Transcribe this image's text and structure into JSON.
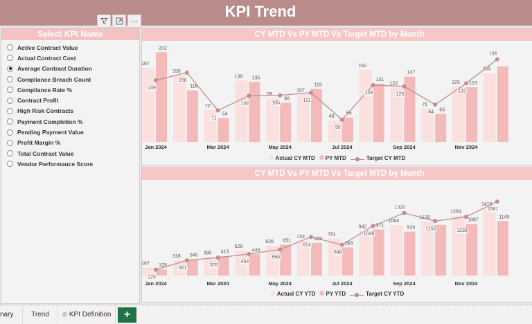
{
  "header": {
    "title": "KPI Trend"
  },
  "visual_icons": [
    "filter-icon",
    "focus-mode-icon",
    "more-options-icon"
  ],
  "slicer": {
    "title": "Select KPI Name",
    "selected_index": 2,
    "items": [
      "Active Contract Value",
      "Actual Contract Cost",
      "Average Contract Duration",
      "Compliance Breach Count",
      "Compliance Rate %",
      "Contract Profit",
      "High Risk Contracts",
      "Payment Completion %",
      "Pending Payment Value",
      "Profit Margin %",
      "Total Contract Value",
      "Vendor Performance Score"
    ]
  },
  "colors": {
    "header": "#b98b8b",
    "actual": "#fbe0e0",
    "py": "#f4b9b9",
    "target": "#bf8f8f",
    "tab_add": "#217346"
  },
  "chart_data": [
    {
      "type": "bar+line",
      "title": "CY MTD Vs PY MTD Vs Target MTD by Month",
      "categories": [
        "Jan 2024",
        "Feb 2024",
        "Mar 2024",
        "Apr 2024",
        "May 2024",
        "Jun 2024",
        "Jul 2024",
        "Aug 2024",
        "Sep 2024",
        "Oct 2024",
        "Nov 2024",
        "Dec 2024"
      ],
      "tick_labels": [
        "Jan 2024",
        "",
        "Mar 2024",
        "",
        "May 2024",
        "",
        "Jul 2024",
        "",
        "Sep 2024",
        "",
        "Nov 2024",
        ""
      ],
      "ylim": [
        0,
        212
      ],
      "grid": false,
      "legend_position": "bottom",
      "series": [
        {
          "name": "Actual CY MTD",
          "kind": "bar",
          "values": [
            167,
            150,
            72,
            138,
            98,
            107,
            48,
            162,
            122,
            75,
            125,
            155
          ]
        },
        {
          "name": "PY MTD",
          "kind": "bar",
          "values": [
            202,
            116,
            54,
            135,
            88,
            119,
            55,
            131,
            147,
            63,
            123,
            170
          ],
          "labels_shown": [
            true,
            true,
            true,
            true,
            true,
            true,
            true,
            true,
            true,
            true,
            true,
            false
          ]
        },
        {
          "name": "Target CY MTD",
          "kind": "line",
          "values": [
            139,
            156,
            71,
            104,
            105,
            111,
            50,
            128,
            125,
            84,
            132,
            186
          ]
        }
      ]
    },
    {
      "type": "bar+line",
      "title": "CY MTD Vs PY MTD Vs Target MTD by Month",
      "categories": [
        "Jan 2024",
        "Feb 2024",
        "Mar 2024",
        "Apr 2024",
        "May 2024",
        "Jun 2024",
        "Jul 2024",
        "Aug 2024",
        "Sep 2024",
        "Oct 2024",
        "Nov 2024",
        "Dec 2024"
      ],
      "tick_labels": [
        "Jan 2024",
        "",
        "Mar 2024",
        "",
        "May 2024",
        "",
        "Jul 2024",
        "",
        "Sep 2024",
        "",
        "Nov 2024",
        ""
      ],
      "ylim": [
        0,
        1870
      ],
      "grid": false,
      "legend_position": "bottom",
      "series": [
        {
          "name": "Actual CY YTD",
          "kind": "bar",
          "values": [
            167,
            318,
            390,
            528,
            626,
            733,
            781,
            942,
            1064,
            1139,
            1264,
            1419
          ]
        },
        {
          "name": "PY YTD",
          "kind": "bar",
          "values": [
            129,
            340,
            413,
            449,
            651,
            689,
            593,
            971,
            926,
            1070,
            1087,
            1149
          ],
          "labels_shown": [
            true,
            true,
            true,
            true,
            true,
            true,
            true,
            true,
            true,
            false,
            true,
            true
          ]
        },
        {
          "name": "Target CY YTD",
          "kind": "line",
          "values": [
            125,
            321,
            378,
            454,
            550,
            814,
            648,
            1046,
            1320,
            1150,
            1239,
            1561
          ]
        }
      ]
    }
  ],
  "tabs": {
    "items": [
      "nary",
      "Trend",
      "KPI Definition"
    ],
    "add_label": "+"
  }
}
